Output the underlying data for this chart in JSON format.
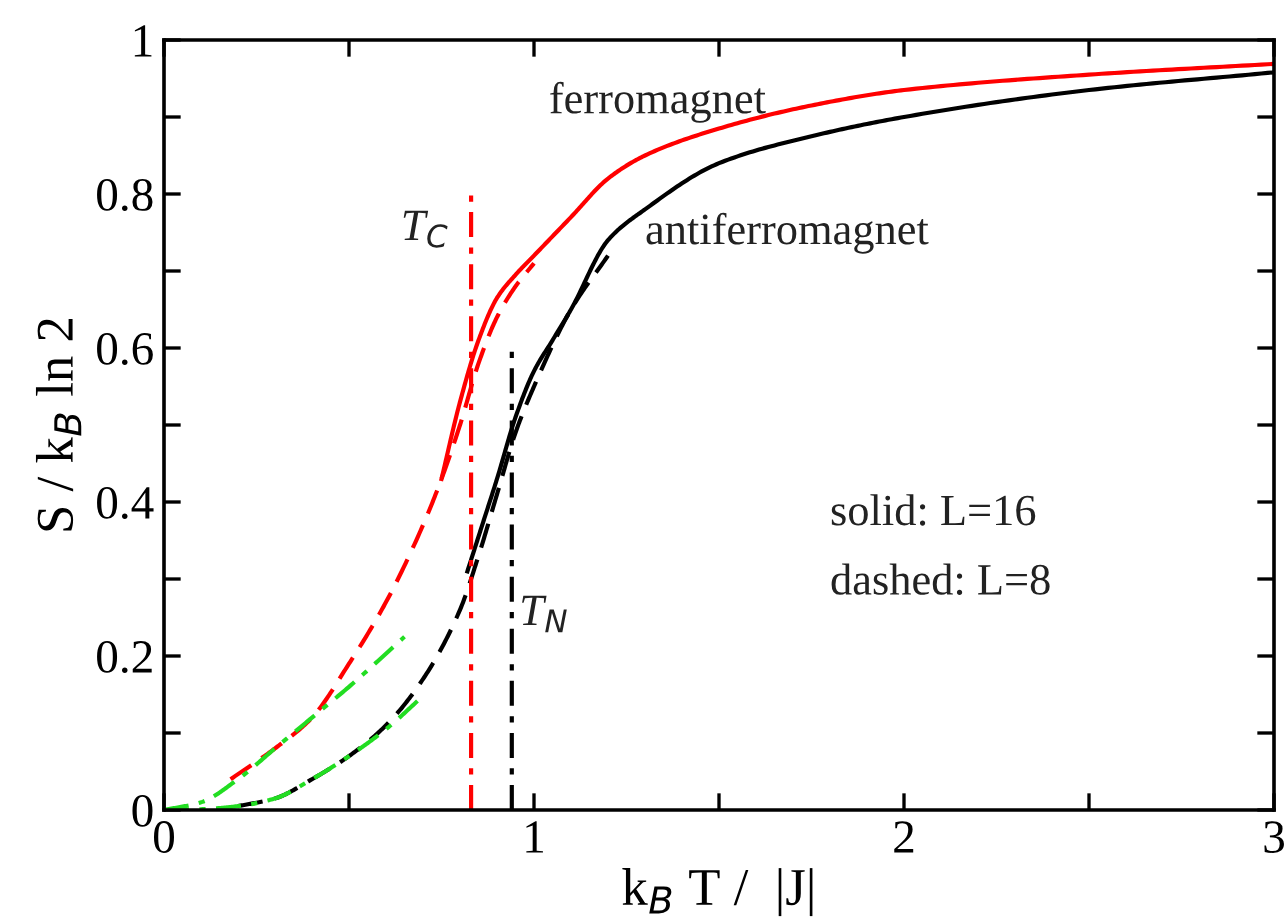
{
  "chart_data": {
    "type": "line",
    "xlabel": "k$_{B}$ T /  |J|",
    "ylabel": "S / k$_{B}$ ln 2",
    "xlim": [
      0,
      3
    ],
    "ylim": [
      0,
      1
    ],
    "xticks": [
      0,
      {
        "value": 0.5,
        "label": null
      },
      1,
      {
        "value": 1.5,
        "label": null
      },
      2,
      {
        "value": 2.5,
        "label": null
      },
      3
    ],
    "yticks": [
      0,
      {
        "value": 0.1,
        "label": null
      },
      0.2,
      {
        "value": 0.3,
        "label": null
      },
      0.4,
      {
        "value": 0.5,
        "label": null
      },
      0.6,
      {
        "value": 0.7,
        "label": null
      },
      0.8,
      {
        "value": 0.9,
        "label": null
      },
      1
    ],
    "grid": false,
    "marker": "none",
    "series": [
      {
        "color": "#ff0000",
        "line_style": "solid",
        "x": [
          0.75,
          0.8,
          0.85,
          0.9,
          0.95,
          1.0,
          1.1,
          1.2,
          1.3,
          1.5,
          1.75,
          2.0,
          2.5,
          3.0
        ],
        "values": [
          0.43,
          0.53,
          0.61,
          0.665,
          0.695,
          0.72,
          0.77,
          0.82,
          0.85,
          0.885,
          0.915,
          0.935,
          0.955,
          0.969
        ]
      },
      {
        "color": "#000000",
        "line_style": "solid",
        "x": [
          0.82,
          0.86,
          0.9,
          0.95,
          1.0,
          1.05,
          1.1,
          1.2,
          1.3,
          1.5,
          1.75,
          2.0,
          2.5,
          3.0
        ],
        "values": [
          0.31,
          0.37,
          0.43,
          0.51,
          0.57,
          0.61,
          0.65,
          0.74,
          0.78,
          0.84,
          0.875,
          0.9,
          0.935,
          0.958
        ]
      },
      {
        "color": "#ff0000",
        "line_style": "dashed",
        "x": [
          0.18,
          0.3,
          0.4,
          0.5,
          0.6,
          0.7,
          0.75,
          0.8,
          0.85,
          0.9,
          0.95,
          1.0
        ],
        "values": [
          0.04,
          0.08,
          0.12,
          0.19,
          0.27,
          0.37,
          0.43,
          0.5,
          0.58,
          0.64,
          0.68,
          0.71
        ]
      },
      {
        "color": "#000000",
        "line_style": "dashed",
        "x": [
          0.2,
          0.3,
          0.4,
          0.5,
          0.6,
          0.7,
          0.8,
          0.85,
          0.9,
          0.95,
          1.0,
          1.1,
          1.2
        ],
        "values": [
          0.005,
          0.015,
          0.04,
          0.07,
          0.11,
          0.17,
          0.26,
          0.33,
          0.41,
          0.49,
          0.55,
          0.65,
          0.72
        ]
      },
      {
        "color": "#22dd22",
        "line_style": "dashdot",
        "x": [
          0,
          0.1,
          0.2,
          0.3,
          0.4,
          0.5,
          0.65
        ],
        "values": [
          0,
          0.01,
          0.04,
          0.08,
          0.12,
          0.16,
          0.225
        ]
      },
      {
        "color": "#22dd22",
        "line_style": "dashdot",
        "x": [
          0,
          0.1,
          0.2,
          0.3,
          0.4,
          0.5,
          0.6,
          0.7
        ],
        "values": [
          0,
          0.001,
          0.005,
          0.015,
          0.04,
          0.07,
          0.105,
          0.148
        ]
      },
      {
        "name": "T$_{C}$",
        "color": "#ff0000",
        "line_style": "dashdot",
        "x": [
          0.83,
          0.83
        ],
        "values": [
          0,
          0.8
        ]
      },
      {
        "name": "T$_{N}$",
        "color": "#000000",
        "line_style": "dashdot",
        "x": [
          0.94,
          0.94
        ],
        "values": [
          0,
          0.6
        ]
      }
    ],
    "annotations": [
      "ferromagnet",
      "antiferromagnet",
      "solid: L=16",
      "dashed: L=8"
    ]
  }
}
